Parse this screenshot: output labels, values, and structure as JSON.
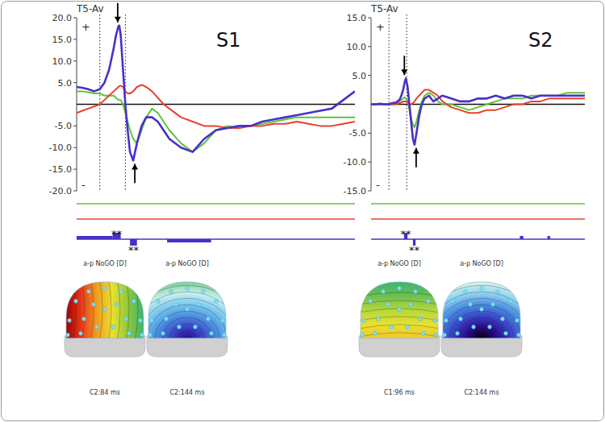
{
  "chart_data": [
    {
      "type": "line",
      "title": "S1",
      "ylabel": "T5-Av",
      "annotations": [
        "+",
        "-"
      ],
      "xlim": [
        -100,
        1100
      ],
      "ylim": [
        -20,
        20
      ],
      "tick_labels": "y",
      "yticks": [
        {
          "value": 20,
          "label": "20.0"
        },
        {
          "value": 15,
          "label": "15.0"
        },
        {
          "value": 10,
          "label": "10.0"
        },
        {
          "value": 5,
          "label": "5.0"
        },
        {
          "value": -5,
          "label": "-5.0"
        },
        {
          "value": -10,
          "label": "-10.0"
        },
        {
          "value": -15,
          "label": "-15.0"
        },
        {
          "value": -20,
          "label": "-20.0"
        }
      ],
      "hlines": [
        0
      ],
      "vlines": [
        0,
        110
      ],
      "x": [
        -100,
        -75,
        -50,
        -25,
        0,
        20,
        40,
        60,
        70,
        80,
        84,
        90,
        100,
        110,
        120,
        130,
        144,
        160,
        180,
        200,
        225,
        250,
        275,
        300,
        350,
        400,
        450,
        500,
        550,
        600,
        650,
        700,
        750,
        800,
        850,
        900,
        950,
        1000,
        1050,
        1100
      ],
      "series": [
        {
          "color": "#5cc43a",
          "values": [
            3,
            3,
            2.8,
            2.5,
            2.5,
            2,
            2,
            2,
            1.5,
            1,
            1,
            1,
            0,
            -2,
            -4,
            -6,
            -8,
            -9,
            -6,
            -3,
            -1,
            -2,
            -4,
            -6,
            -9,
            -11,
            -9,
            -6,
            -5,
            -5.5,
            -5,
            -4.5,
            -4,
            -3.5,
            -3,
            -3,
            -3,
            -3,
            -3,
            -3
          ]
        },
        {
          "color": "#e8402a",
          "values": [
            -2,
            -1.5,
            -1,
            -0.5,
            0,
            1,
            2,
            3,
            3.5,
            4,
            4.2,
            4.3,
            4,
            3,
            2.5,
            2.5,
            3,
            4,
            4.5,
            4,
            3,
            1.5,
            0,
            -1,
            -3,
            -4,
            -5,
            -5,
            -5.5,
            -5.5,
            -5,
            -5,
            -4.5,
            -4.5,
            -4,
            -4.5,
            -5,
            -5,
            -4.5,
            -4
          ]
        },
        {
          "color": "#4a2fc8",
          "values": [
            4,
            3.8,
            3.5,
            3,
            3.5,
            5,
            8,
            13,
            16,
            18,
            18.2,
            16,
            8,
            0,
            -6,
            -11,
            -13,
            -9,
            -5,
            -3,
            -3,
            -4,
            -6,
            -8,
            -10,
            -11,
            -8,
            -6,
            -5.5,
            -5,
            -5,
            -4,
            -3.5,
            -3,
            -2.5,
            -2,
            -1.5,
            -1,
            1,
            3
          ]
        }
      ],
      "significance": [
        {
          "x": [
            -100,
            55
          ],
          "direction": "up"
        },
        {
          "x": [
            55,
            90
          ],
          "direction": "up",
          "label": "**"
        },
        {
          "x": [
            130,
            160
          ],
          "direction": "down",
          "label": "**"
        },
        {
          "x": [
            290,
            480
          ],
          "direction": "down"
        }
      ],
      "topomaps": [
        {
          "label": "a-p NoGO [D]",
          "caption": "C2:84 ms",
          "colors": [
            "#a00000",
            "#e83a1a",
            "#f0a020",
            "#e8e030",
            "#8cc83c",
            "#3cb46e"
          ]
        },
        {
          "label": "a-p NoGO [D]",
          "caption": "C2:144 ms",
          "colors": [
            "#2a0a8e",
            "#3a46c8",
            "#4a8ee0",
            "#78c8f0",
            "#c8f0f0",
            "#7ccf8c"
          ]
        }
      ]
    },
    {
      "type": "line",
      "title": "S2",
      "ylabel": "T5-Av",
      "annotations": [
        "+",
        "-"
      ],
      "xlim": [
        -100,
        1100
      ],
      "ylim": [
        -15,
        15
      ],
      "tick_labels": "y",
      "yticks": [
        {
          "value": 15,
          "label": "15.0"
        },
        {
          "value": 10,
          "label": "10.0"
        },
        {
          "value": 5,
          "label": "5.0"
        },
        {
          "value": -5,
          "label": "-5.0"
        },
        {
          "value": -10,
          "label": "-10.0"
        },
        {
          "value": -15,
          "label": "-15.0"
        }
      ],
      "hlines": [
        0
      ],
      "vlines": [
        0,
        100
      ],
      "x": [
        -100,
        -75,
        -50,
        -25,
        0,
        20,
        40,
        60,
        70,
        80,
        90,
        96,
        105,
        115,
        125,
        135,
        144,
        155,
        170,
        185,
        200,
        225,
        250,
        275,
        300,
        350,
        400,
        450,
        500,
        550,
        600,
        650,
        700,
        750,
        800,
        850,
        900,
        950,
        1000,
        1050,
        1100
      ],
      "series": [
        {
          "color": "#5cc43a",
          "values": [
            0,
            0,
            0,
            0,
            0,
            0,
            0.2,
            0.5,
            0.8,
            1,
            1.2,
            1,
            0.5,
            -1,
            -2.5,
            -3.5,
            -4,
            -3,
            -1,
            0.5,
            1.5,
            2,
            1.5,
            0.5,
            0,
            0,
            -0.5,
            -1,
            -0.5,
            0,
            0.5,
            1,
            1,
            1,
            1.5,
            1.5,
            1.5,
            1.5,
            2,
            2,
            2
          ]
        },
        {
          "color": "#e8402a",
          "values": [
            0,
            0,
            0,
            0,
            0,
            0,
            0,
            0.2,
            0.3,
            0.5,
            0.5,
            0.5,
            0.3,
            0,
            0,
            0.2,
            0.5,
            1,
            1.5,
            2,
            2.5,
            2.5,
            2,
            1.5,
            0.5,
            -0.5,
            -1,
            -1.5,
            -1.5,
            -1,
            -1,
            -0.5,
            0,
            0,
            0.5,
            0.5,
            1,
            1,
            1,
            1,
            1
          ]
        },
        {
          "color": "#4a2fc8",
          "values": [
            0,
            0,
            0.1,
            0,
            0,
            0.2,
            0.3,
            0.8,
            1.5,
            2.5,
            4,
            4.5,
            3,
            0,
            -3,
            -6,
            -7,
            -5,
            -2,
            0,
            1,
            1.5,
            0.5,
            1,
            1.5,
            1,
            0.5,
            0.5,
            1,
            1,
            1.5,
            1,
            1.5,
            1.5,
            1,
            1.5,
            1.5,
            1.5,
            1.5,
            1.5,
            1.5
          ]
        }
      ],
      "significance": [
        {
          "x": [
            85,
            105
          ],
          "direction": "up",
          "label": "**"
        },
        {
          "x": [
            135,
            150
          ],
          "direction": "down",
          "label": "**"
        },
        {
          "x": [
            735,
            755
          ],
          "direction": "up"
        },
        {
          "x": [
            890,
            905
          ],
          "direction": "up"
        }
      ],
      "topomaps": [
        {
          "label": "a-p NoGO [D]",
          "caption": "C1:96 ms",
          "colors": [
            "#3cb46e",
            "#6cc050",
            "#b4d83c",
            "#e8e030",
            "#f0c828"
          ]
        },
        {
          "label": "a-p NoGO [D]",
          "caption": "C2:144 ms",
          "colors": [
            "#000000",
            "#2a0a8e",
            "#3a46c8",
            "#4a8ee0",
            "#90d4f0",
            "#d8f4e8"
          ]
        }
      ]
    }
  ]
}
